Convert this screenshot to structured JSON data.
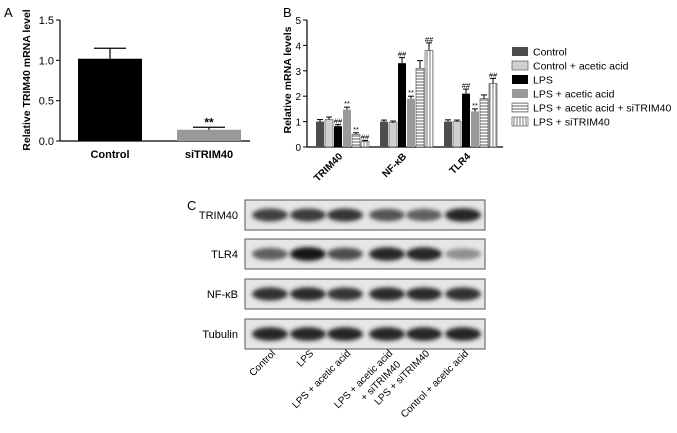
{
  "chart_data": [
    {
      "type": "bar",
      "panel_label": "A",
      "ylabel": "Relative TRIM40 mRNA level",
      "categories": [
        "Control",
        "siTRIM40"
      ],
      "values": [
        1.02,
        0.14
      ],
      "errors": [
        0.13,
        0.03
      ],
      "annotations": [
        "",
        "**"
      ],
      "yticks": [
        "0.0",
        "0.5",
        "1.0",
        "1.5"
      ],
      "ylim": [
        0,
        1.5
      ],
      "colors": [
        "#000000",
        "#999999"
      ]
    },
    {
      "type": "bar",
      "panel_label": "B",
      "ylabel": "Relative mRNA levels",
      "categories": [
        "TRIM40",
        "NF-κB",
        "TLR4"
      ],
      "yticks": [
        "0",
        "1",
        "2",
        "3",
        "4",
        "5"
      ],
      "ylim": [
        0,
        5
      ],
      "legend_position": "right",
      "series": [
        {
          "name": "Control",
          "values": [
            1.0,
            1.0,
            1.0
          ],
          "errors": [
            0.08,
            0.06,
            0.07
          ],
          "annotations": [
            "",
            "",
            ""
          ],
          "color": "#4d4d4d",
          "pattern": "solid"
        },
        {
          "name": "Control + acetic acid",
          "values": [
            1.08,
            0.96,
            1.0
          ],
          "errors": [
            0.1,
            0.06,
            0.06
          ],
          "annotations": [
            "",
            "",
            ""
          ],
          "color": "#cfcfcf",
          "pattern": "solid"
        },
        {
          "name": "LPS",
          "values": [
            0.82,
            3.3,
            2.1
          ],
          "errors": [
            0.06,
            0.22,
            0.18
          ],
          "annotations": [
            "##",
            "##",
            "##"
          ],
          "color": "#000000",
          "pattern": "solid"
        },
        {
          "name": "LPS + acetic acid",
          "values": [
            1.47,
            1.9,
            1.4
          ],
          "errors": [
            0.1,
            0.1,
            0.1
          ],
          "annotations": [
            "**",
            "**",
            "**"
          ],
          "color": "#9a9a9a",
          "pattern": "solid"
        },
        {
          "name": "LPS + acetic acid + siTRIM40",
          "values": [
            0.5,
            3.1,
            1.9
          ],
          "errors": [
            0.06,
            0.3,
            0.15
          ],
          "annotations": [
            "**",
            "",
            ""
          ],
          "color": "#ffffff",
          "pattern": "hlines"
        },
        {
          "name": "LPS + siTRIM40",
          "values": [
            0.22,
            3.8,
            2.5
          ],
          "errors": [
            0.04,
            0.3,
            0.2
          ],
          "annotations": [
            "##",
            "##",
            "##"
          ],
          "color": "#ffffff",
          "pattern": "vlines"
        }
      ]
    }
  ],
  "blot": {
    "panel_label": "C",
    "rows": [
      "TRIM40",
      "TLR4",
      "NF-κB",
      "Tubulin"
    ],
    "lanes": [
      "Control",
      "LPS",
      "LPS + acetic acid",
      "LPS + acetic acid\n+ siTRIM40",
      "LPS + siTRIM40",
      "Control + acetic acid"
    ],
    "intensities": [
      [
        0.72,
        0.75,
        0.78,
        0.62,
        0.55,
        0.85
      ],
      [
        0.55,
        0.95,
        0.65,
        0.85,
        0.85,
        0.3
      ],
      [
        0.8,
        0.82,
        0.78,
        0.82,
        0.82,
        0.8
      ],
      [
        0.85,
        0.85,
        0.85,
        0.85,
        0.85,
        0.85
      ]
    ]
  }
}
